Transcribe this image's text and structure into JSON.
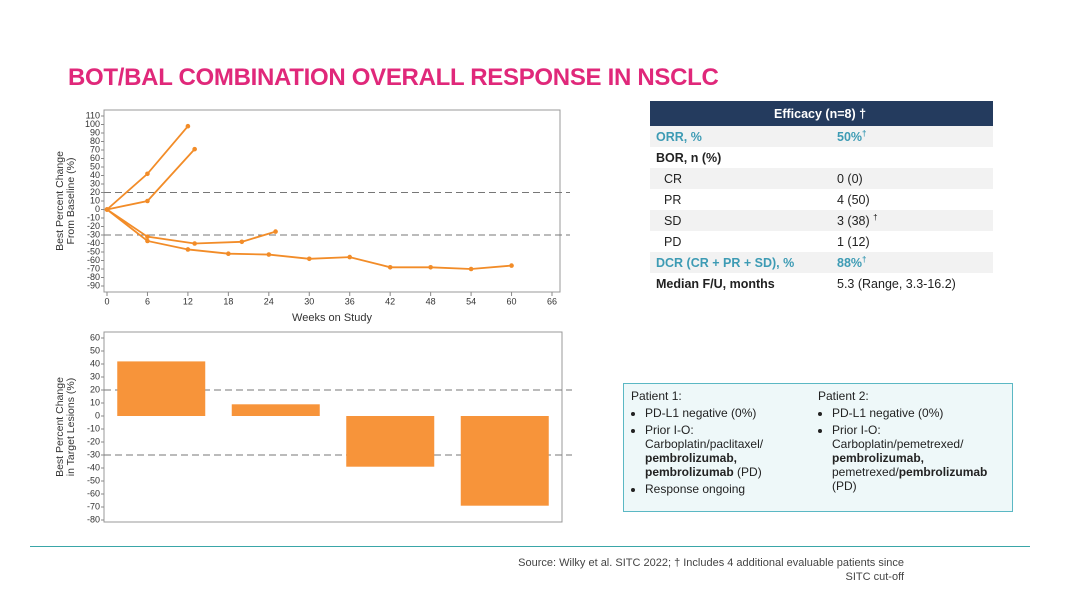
{
  "title": "BOT/BAL COMBINATION OVERALL RESPONSE IN NSCLC",
  "chart_data": [
    {
      "type": "line",
      "color": "#f28c28",
      "ylabel": [
        "Best Percent Change",
        "From Baseline (%)"
      ],
      "xlabel": "Weeks on Study",
      "xlim": [
        0,
        66
      ],
      "xticks": [
        0,
        6,
        12,
        18,
        24,
        30,
        36,
        42,
        48,
        54,
        60,
        66
      ],
      "ylim": [
        -90,
        110
      ],
      "yticks": [
        110,
        100,
        90,
        80,
        70,
        60,
        50,
        40,
        30,
        20,
        10,
        0,
        -10,
        -20,
        -30,
        -40,
        -50,
        -60,
        -70,
        -80,
        -90
      ],
      "reference_lines": [
        20,
        -30
      ],
      "series": [
        {
          "x": [
            0,
            6,
            12
          ],
          "values": [
            0,
            42,
            98
          ]
        },
        {
          "x": [
            0,
            6,
            13
          ],
          "values": [
            0,
            10,
            71
          ]
        },
        {
          "x": [
            0,
            6,
            13,
            20,
            25
          ],
          "values": [
            0,
            -32,
            -40,
            -38,
            -26
          ]
        },
        {
          "x": [
            0,
            6,
            12,
            18,
            24,
            30,
            36,
            42,
            48,
            54,
            60
          ],
          "values": [
            0,
            -37,
            -47,
            -52,
            -53,
            -58,
            -56,
            -68,
            -68,
            -70,
            -66
          ]
        }
      ]
    },
    {
      "type": "bar",
      "color": "#f7943a",
      "ylabel": [
        "Best Percent Change",
        "in Target Lesions (%)"
      ],
      "ylim": [
        -80,
        60
      ],
      "yticks": [
        60,
        50,
        40,
        30,
        20,
        10,
        0,
        -10,
        -20,
        -30,
        -40,
        -50,
        -60,
        -70,
        -80
      ],
      "reference_lines": [
        20,
        -30
      ],
      "categories": [
        null,
        null,
        null,
        null
      ],
      "values": [
        42,
        9,
        -39,
        -69
      ]
    }
  ],
  "table": {
    "header": "Efficacy (n=8) †",
    "rows": [
      {
        "label": "ORR, %",
        "value": "50%",
        "note": "†"
      },
      {
        "label": "BOR, n (%)"
      },
      {
        "label": "CR",
        "value": "0 (0)"
      },
      {
        "label": "PR",
        "value": "4 (50)"
      },
      {
        "label": "SD",
        "value": "3 (38)",
        "note": "†"
      },
      {
        "label": "PD",
        "value": "1 (12)"
      },
      {
        "label": "DCR (CR + PR + SD), %",
        "value": "88%",
        "note": "†"
      },
      {
        "label": "Median F/U, months",
        "value": "5.3 (Range, 3.3-16.2)"
      }
    ]
  },
  "patients": [
    {
      "title": "Patient 1:",
      "items": [
        [
          "PD-L1 negative (0%)"
        ],
        [
          "Prior I-O:",
          "Carboplatin/paclitaxel/",
          "pembrolizumab,",
          "pembrolizumab",
          " (PD)"
        ],
        [
          "Response ongoing"
        ]
      ]
    },
    {
      "title": "Patient 2:",
      "items": [
        [
          "PD-L1 negative (0%)"
        ],
        [
          "Prior I-O:",
          "Carboplatin/pemetrexed/",
          "pembrolizumab,",
          "pemetrexed/",
          "pembrolizumab",
          "(PD)"
        ]
      ]
    }
  ],
  "source": [
    "Source:  Wilky et al. SITC 2022; † Includes 4 additional evaluable patients since",
    "SITC cut-off"
  ]
}
